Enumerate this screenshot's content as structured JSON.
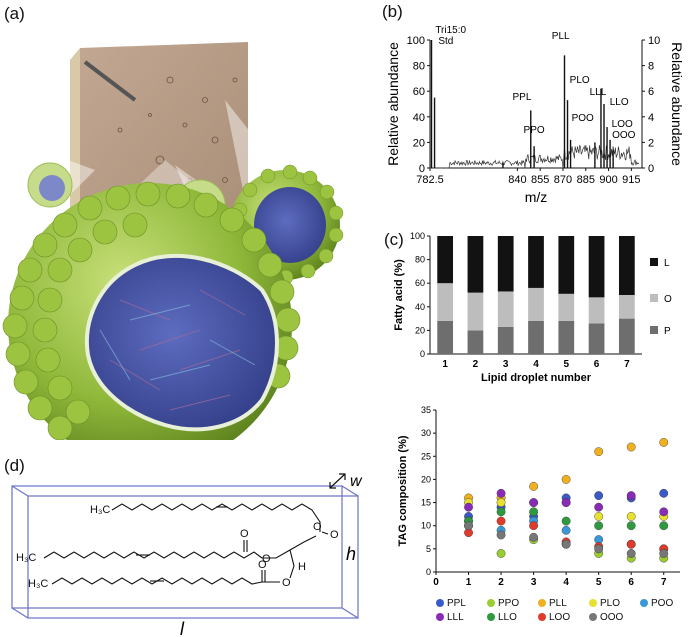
{
  "panels": {
    "a": "(a)",
    "b": "(b)",
    "c": "(c)",
    "d": "(d)"
  },
  "colors": {
    "droplet_green": "#8fb83a",
    "core_blue": "#4a58a8",
    "micro_bg": "#b89a82",
    "bar_L": "#121212",
    "bar_O": "#bdbdbd",
    "bar_P": "#6e6e6e",
    "box_line": "#6a72c8"
  },
  "chart_data": [
    {
      "type": "line",
      "panel": "b",
      "xlabel": "m/z",
      "ylabel_left": "Relative abundance",
      "ylabel_right": "Relative abundance",
      "x_ticks": [
        "782.5",
        "840",
        "855",
        "870",
        "885",
        "900",
        "915"
      ],
      "y_ticks_left": [
        "0",
        "20",
        "40",
        "60",
        "80",
        "100"
      ],
      "y_ticks_right": [
        "0",
        "2",
        "4",
        "6",
        "8",
        "10"
      ],
      "peak_labels": [
        "Tri15:0",
        "Std",
        "PPL",
        "PPO",
        "PLL",
        "PLO",
        "POO",
        "LLL",
        "LLO",
        "LOO",
        "OOO"
      ],
      "peaks": [
        {
          "mz": 783.5,
          "y": 100
        },
        {
          "mz": 785.5,
          "y": 55
        },
        {
          "mz": 830.5,
          "y": 4
        },
        {
          "mz": 848.8,
          "y": 45
        },
        {
          "mz": 851,
          "y": 17
        },
        {
          "mz": 871,
          "y": 88
        },
        {
          "mz": 873,
          "y": 53
        },
        {
          "mz": 875,
          "y": 22
        },
        {
          "mz": 891,
          "y": 20
        },
        {
          "mz": 895,
          "y": 62
        },
        {
          "mz": 897,
          "y": 50
        },
        {
          "mz": 899,
          "y": 32
        },
        {
          "mz": 901,
          "y": 22
        },
        {
          "mz": 903,
          "y": 14
        }
      ]
    },
    {
      "type": "bar",
      "panel": "c-top",
      "ylabel": "Fatty acid (%)",
      "xlabel": "Lipid droplet number",
      "categories": [
        "1",
        "2",
        "3",
        "4",
        "5",
        "6",
        "7"
      ],
      "y_ticks": [
        "0",
        "20",
        "40",
        "60",
        "80",
        "100"
      ],
      "ylim": [
        0,
        100
      ],
      "series": [
        {
          "name": "P",
          "values": [
            28,
            20,
            23,
            28,
            28,
            26,
            30
          ]
        },
        {
          "name": "O",
          "values": [
            32,
            32,
            30,
            28,
            23,
            22,
            20
          ]
        },
        {
          "name": "L",
          "values": [
            40,
            48,
            47,
            44,
            49,
            52,
            50
          ]
        }
      ]
    },
    {
      "type": "scatter",
      "panel": "c-bottom",
      "ylabel": "TAG composition (%)",
      "xlabel": "Lipid droplet number",
      "x_ticks": [
        "0",
        "1",
        "2",
        "3",
        "4",
        "5",
        "6",
        "7"
      ],
      "y_ticks": [
        "0",
        "5",
        "10",
        "15",
        "20",
        "25",
        "30",
        "35"
      ],
      "xlim": [
        0,
        7.5
      ],
      "ylim": [
        0,
        35
      ],
      "series": [
        {
          "name": "PPL",
          "color": "#3a5ac8",
          "values": [
            12,
            14,
            12,
            16,
            16.5,
            16,
            17
          ]
        },
        {
          "name": "PPO",
          "color": "#9acd32",
          "values": [
            10,
            4,
            7,
            6,
            4,
            3,
            3
          ]
        },
        {
          "name": "PLL",
          "color": "#f0b020",
          "values": [
            16,
            16,
            18.5,
            20,
            26,
            27,
            28
          ]
        },
        {
          "name": "PLO",
          "color": "#e8e030",
          "values": [
            15,
            15,
            15,
            15,
            12,
            12,
            12
          ]
        },
        {
          "name": "POO",
          "color": "#3a98d8",
          "values": [
            11,
            9,
            11,
            9,
            7,
            6,
            5
          ]
        },
        {
          "name": "LLL",
          "color": "#8a2ab8",
          "values": [
            14,
            17,
            15,
            15,
            14,
            16.5,
            13
          ]
        },
        {
          "name": "LLO",
          "color": "#2e9a40",
          "values": [
            11,
            13,
            13,
            11,
            10,
            10,
            10
          ]
        },
        {
          "name": "LOO",
          "color": "#e03a2a",
          "values": [
            8.5,
            11,
            10,
            6.5,
            5.5,
            6,
            5
          ]
        },
        {
          "name": "OOO",
          "color": "#777777",
          "values": [
            10,
            8,
            7.5,
            6,
            5,
            4,
            4
          ]
        }
      ],
      "legend": [
        "PPL",
        "PPO",
        "PLL",
        "PLO",
        "POO",
        "LLL",
        "LLO",
        "LOO",
        "OOO"
      ]
    }
  ],
  "structure": {
    "chain_ends": [
      "H₃C",
      "H₃C",
      "H₃C"
    ],
    "atoms": [
      "O",
      "O",
      "O",
      "O",
      "O",
      "O",
      "H"
    ],
    "dims": [
      "w",
      "h",
      "l"
    ]
  }
}
